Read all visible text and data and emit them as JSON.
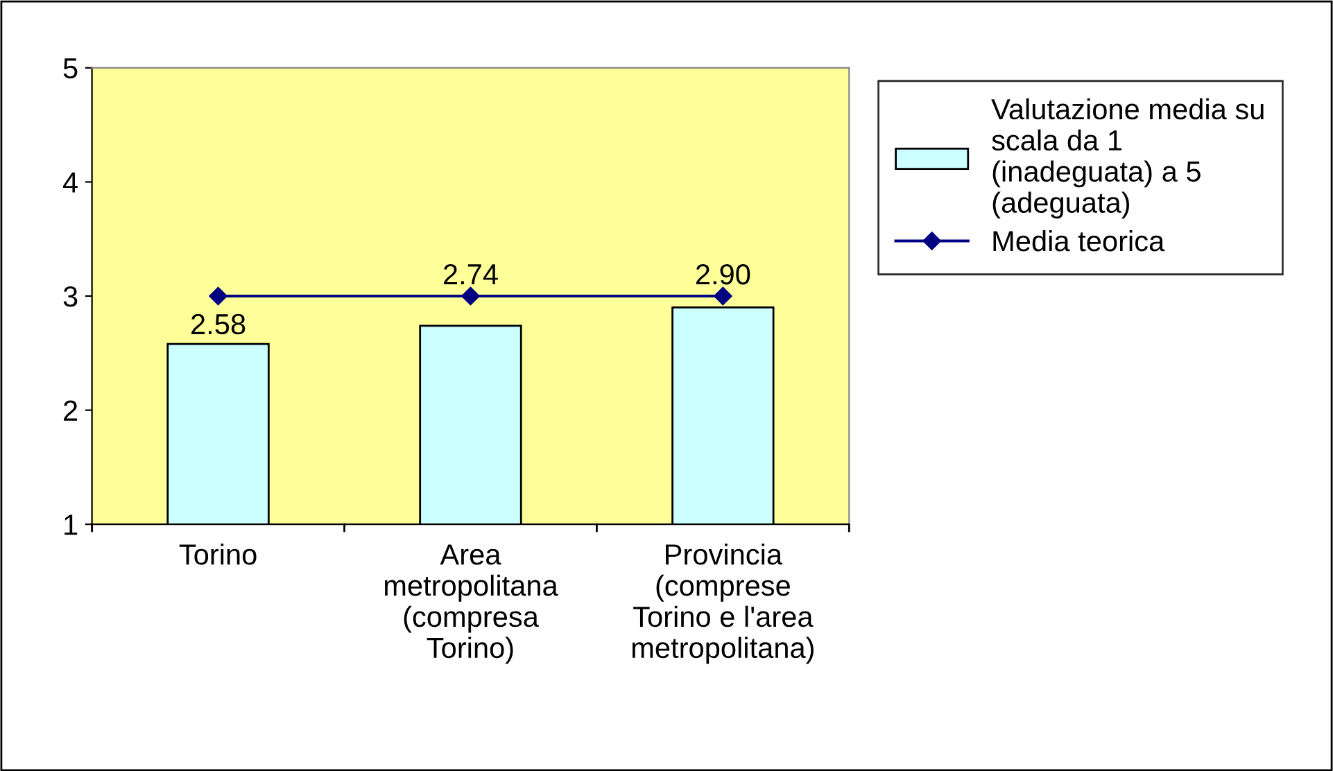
{
  "chart_data": {
    "type": "bar",
    "categories": [
      "Torino",
      "Area\nmetropolitana\n(compresa\nTorino)",
      "Provincia\n(comprese\nTorino e l'area\nmetropolitana)"
    ],
    "series": [
      {
        "name": "Valutazione media su\nscala da 1\n(inadeguata) a 5\n(adeguata)",
        "color": "#ccffff",
        "values": [
          2.58,
          2.74,
          2.9
        ],
        "value_labels": [
          "2.58",
          "2.74",
          "2.90"
        ]
      },
      {
        "name": "Media teorica",
        "type": "line",
        "color": "#000080",
        "values": [
          3,
          3,
          3
        ],
        "marker": "diamond",
        "line_style": "solid"
      }
    ],
    "ylim": [
      1,
      5
    ],
    "yticks": [
      1,
      2,
      3,
      4,
      5
    ],
    "grid": false,
    "legend": "right"
  }
}
